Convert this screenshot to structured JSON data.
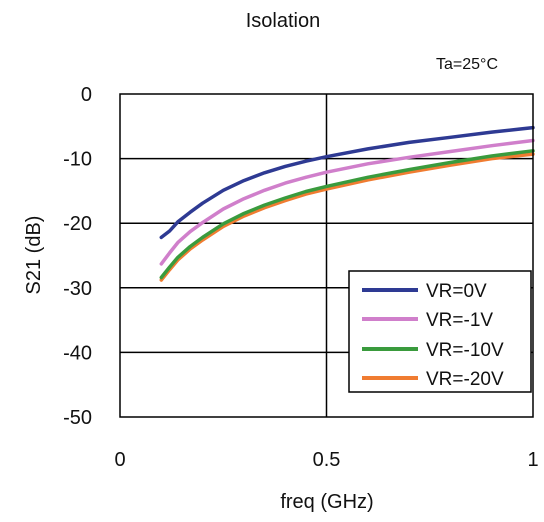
{
  "chart_data": {
    "type": "line",
    "title": "Isolation",
    "annotation": "Ta=25°C",
    "xlabel": "freq (GHz)",
    "ylabel": "S21 (dB)",
    "xlim": [
      0,
      1
    ],
    "ylim": [
      -50,
      0
    ],
    "x_ticks": [
      0,
      0.5,
      1
    ],
    "x_tick_labels": [
      "0",
      "0.5",
      "1"
    ],
    "y_ticks": [
      0,
      -10,
      -20,
      -30,
      -40,
      -50
    ],
    "y_tick_labels": [
      "0",
      "-10",
      "-20",
      "-30",
      "-40",
      "-50"
    ],
    "grid": true,
    "legend_position": "bottom-right",
    "series": [
      {
        "name": "VR=0V",
        "color": "#2e3a93",
        "x": [
          0.1,
          0.12,
          0.14,
          0.17,
          0.2,
          0.25,
          0.3,
          0.35,
          0.4,
          0.45,
          0.5,
          0.6,
          0.7,
          0.8,
          0.9,
          1.0
        ],
        "y": [
          -22.2,
          -21.2,
          -19.8,
          -18.3,
          -16.9,
          -14.9,
          -13.4,
          -12.2,
          -11.2,
          -10.4,
          -9.7,
          -8.5,
          -7.5,
          -6.7,
          -5.9,
          -5.2
        ]
      },
      {
        "name": "VR=-1V",
        "color": "#d07fcb",
        "x": [
          0.1,
          0.12,
          0.14,
          0.17,
          0.2,
          0.25,
          0.3,
          0.35,
          0.4,
          0.45,
          0.5,
          0.6,
          0.7,
          0.8,
          0.9,
          1.0
        ],
        "y": [
          -26.3,
          -24.6,
          -23.0,
          -21.3,
          -19.9,
          -17.8,
          -16.2,
          -14.9,
          -13.8,
          -12.9,
          -12.1,
          -10.8,
          -9.8,
          -8.9,
          -8.0,
          -7.2
        ]
      },
      {
        "name": "VR=-10V",
        "color": "#3a9b3d",
        "x": [
          0.1,
          0.12,
          0.14,
          0.17,
          0.2,
          0.25,
          0.3,
          0.35,
          0.4,
          0.45,
          0.5,
          0.6,
          0.7,
          0.8,
          0.9,
          1.0
        ],
        "y": [
          -28.4,
          -26.8,
          -25.3,
          -23.6,
          -22.2,
          -20.1,
          -18.5,
          -17.2,
          -16.1,
          -15.1,
          -14.3,
          -12.9,
          -11.7,
          -10.6,
          -9.6,
          -8.8
        ]
      },
      {
        "name": "VR=-20V",
        "color": "#f07c31",
        "x": [
          0.1,
          0.12,
          0.14,
          0.17,
          0.2,
          0.25,
          0.3,
          0.35,
          0.4,
          0.45,
          0.5,
          0.6,
          0.7,
          0.8,
          0.9,
          1.0
        ],
        "y": [
          -28.8,
          -27.2,
          -25.7,
          -24.0,
          -22.6,
          -20.5,
          -18.9,
          -17.6,
          -16.5,
          -15.5,
          -14.7,
          -13.3,
          -12.1,
          -11.0,
          -10.0,
          -9.3
        ]
      }
    ]
  }
}
